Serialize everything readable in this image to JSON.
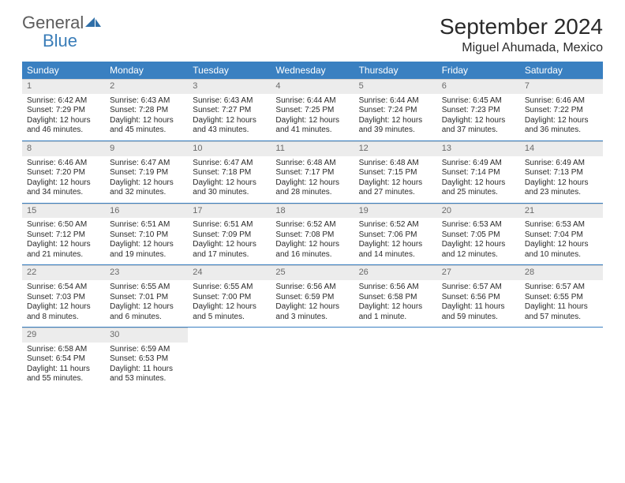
{
  "brand": {
    "general": "General",
    "blue": "Blue"
  },
  "title": "September 2024",
  "location": "Miguel Ahumada, Mexico",
  "colors": {
    "header_bg": "#3a80c1",
    "header_text": "#ffffff",
    "daynum_bg": "#ececec",
    "daynum_text": "#6a6a6a",
    "border": "#3a80c1",
    "body_text": "#2a2a2a",
    "logo_gray": "#5c5c5c",
    "logo_blue": "#3a7db8"
  },
  "day_names": [
    "Sunday",
    "Monday",
    "Tuesday",
    "Wednesday",
    "Thursday",
    "Friday",
    "Saturday"
  ],
  "weeks": [
    [
      {
        "n": "1",
        "sr": "Sunrise: 6:42 AM",
        "ss": "Sunset: 7:29 PM",
        "d1": "Daylight: 12 hours",
        "d2": "and 46 minutes."
      },
      {
        "n": "2",
        "sr": "Sunrise: 6:43 AM",
        "ss": "Sunset: 7:28 PM",
        "d1": "Daylight: 12 hours",
        "d2": "and 45 minutes."
      },
      {
        "n": "3",
        "sr": "Sunrise: 6:43 AM",
        "ss": "Sunset: 7:27 PM",
        "d1": "Daylight: 12 hours",
        "d2": "and 43 minutes."
      },
      {
        "n": "4",
        "sr": "Sunrise: 6:44 AM",
        "ss": "Sunset: 7:25 PM",
        "d1": "Daylight: 12 hours",
        "d2": "and 41 minutes."
      },
      {
        "n": "5",
        "sr": "Sunrise: 6:44 AM",
        "ss": "Sunset: 7:24 PM",
        "d1": "Daylight: 12 hours",
        "d2": "and 39 minutes."
      },
      {
        "n": "6",
        "sr": "Sunrise: 6:45 AM",
        "ss": "Sunset: 7:23 PM",
        "d1": "Daylight: 12 hours",
        "d2": "and 37 minutes."
      },
      {
        "n": "7",
        "sr": "Sunrise: 6:46 AM",
        "ss": "Sunset: 7:22 PM",
        "d1": "Daylight: 12 hours",
        "d2": "and 36 minutes."
      }
    ],
    [
      {
        "n": "8",
        "sr": "Sunrise: 6:46 AM",
        "ss": "Sunset: 7:20 PM",
        "d1": "Daylight: 12 hours",
        "d2": "and 34 minutes."
      },
      {
        "n": "9",
        "sr": "Sunrise: 6:47 AM",
        "ss": "Sunset: 7:19 PM",
        "d1": "Daylight: 12 hours",
        "d2": "and 32 minutes."
      },
      {
        "n": "10",
        "sr": "Sunrise: 6:47 AM",
        "ss": "Sunset: 7:18 PM",
        "d1": "Daylight: 12 hours",
        "d2": "and 30 minutes."
      },
      {
        "n": "11",
        "sr": "Sunrise: 6:48 AM",
        "ss": "Sunset: 7:17 PM",
        "d1": "Daylight: 12 hours",
        "d2": "and 28 minutes."
      },
      {
        "n": "12",
        "sr": "Sunrise: 6:48 AM",
        "ss": "Sunset: 7:15 PM",
        "d1": "Daylight: 12 hours",
        "d2": "and 27 minutes."
      },
      {
        "n": "13",
        "sr": "Sunrise: 6:49 AM",
        "ss": "Sunset: 7:14 PM",
        "d1": "Daylight: 12 hours",
        "d2": "and 25 minutes."
      },
      {
        "n": "14",
        "sr": "Sunrise: 6:49 AM",
        "ss": "Sunset: 7:13 PM",
        "d1": "Daylight: 12 hours",
        "d2": "and 23 minutes."
      }
    ],
    [
      {
        "n": "15",
        "sr": "Sunrise: 6:50 AM",
        "ss": "Sunset: 7:12 PM",
        "d1": "Daylight: 12 hours",
        "d2": "and 21 minutes."
      },
      {
        "n": "16",
        "sr": "Sunrise: 6:51 AM",
        "ss": "Sunset: 7:10 PM",
        "d1": "Daylight: 12 hours",
        "d2": "and 19 minutes."
      },
      {
        "n": "17",
        "sr": "Sunrise: 6:51 AM",
        "ss": "Sunset: 7:09 PM",
        "d1": "Daylight: 12 hours",
        "d2": "and 17 minutes."
      },
      {
        "n": "18",
        "sr": "Sunrise: 6:52 AM",
        "ss": "Sunset: 7:08 PM",
        "d1": "Daylight: 12 hours",
        "d2": "and 16 minutes."
      },
      {
        "n": "19",
        "sr": "Sunrise: 6:52 AM",
        "ss": "Sunset: 7:06 PM",
        "d1": "Daylight: 12 hours",
        "d2": "and 14 minutes."
      },
      {
        "n": "20",
        "sr": "Sunrise: 6:53 AM",
        "ss": "Sunset: 7:05 PM",
        "d1": "Daylight: 12 hours",
        "d2": "and 12 minutes."
      },
      {
        "n": "21",
        "sr": "Sunrise: 6:53 AM",
        "ss": "Sunset: 7:04 PM",
        "d1": "Daylight: 12 hours",
        "d2": "and 10 minutes."
      }
    ],
    [
      {
        "n": "22",
        "sr": "Sunrise: 6:54 AM",
        "ss": "Sunset: 7:03 PM",
        "d1": "Daylight: 12 hours",
        "d2": "and 8 minutes."
      },
      {
        "n": "23",
        "sr": "Sunrise: 6:55 AM",
        "ss": "Sunset: 7:01 PM",
        "d1": "Daylight: 12 hours",
        "d2": "and 6 minutes."
      },
      {
        "n": "24",
        "sr": "Sunrise: 6:55 AM",
        "ss": "Sunset: 7:00 PM",
        "d1": "Daylight: 12 hours",
        "d2": "and 5 minutes."
      },
      {
        "n": "25",
        "sr": "Sunrise: 6:56 AM",
        "ss": "Sunset: 6:59 PM",
        "d1": "Daylight: 12 hours",
        "d2": "and 3 minutes."
      },
      {
        "n": "26",
        "sr": "Sunrise: 6:56 AM",
        "ss": "Sunset: 6:58 PM",
        "d1": "Daylight: 12 hours",
        "d2": "and 1 minute."
      },
      {
        "n": "27",
        "sr": "Sunrise: 6:57 AM",
        "ss": "Sunset: 6:56 PM",
        "d1": "Daylight: 11 hours",
        "d2": "and 59 minutes."
      },
      {
        "n": "28",
        "sr": "Sunrise: 6:57 AM",
        "ss": "Sunset: 6:55 PM",
        "d1": "Daylight: 11 hours",
        "d2": "and 57 minutes."
      }
    ],
    [
      {
        "n": "29",
        "sr": "Sunrise: 6:58 AM",
        "ss": "Sunset: 6:54 PM",
        "d1": "Daylight: 11 hours",
        "d2": "and 55 minutes."
      },
      {
        "n": "30",
        "sr": "Sunrise: 6:59 AM",
        "ss": "Sunset: 6:53 PM",
        "d1": "Daylight: 11 hours",
        "d2": "and 53 minutes."
      },
      {
        "empty": true
      },
      {
        "empty": true
      },
      {
        "empty": true
      },
      {
        "empty": true
      },
      {
        "empty": true
      }
    ]
  ]
}
